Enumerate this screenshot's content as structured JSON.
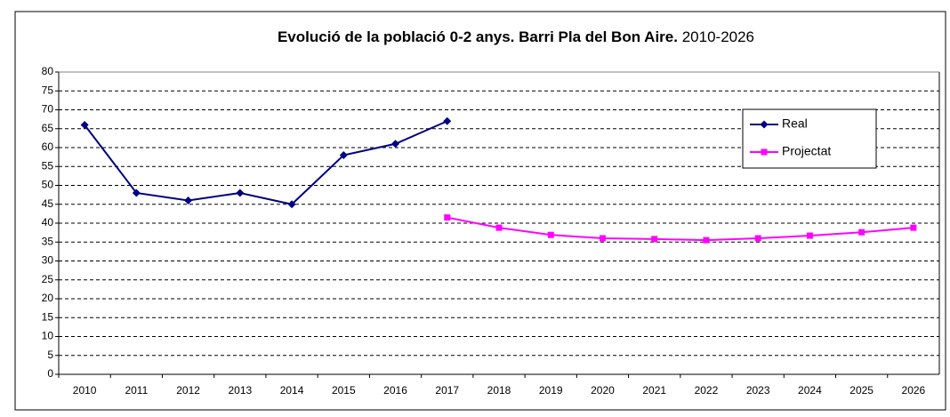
{
  "chart_data": {
    "type": "line",
    "title": "Evolució de la població 0-2 anys. Barri Pla del Bon Aire.",
    "subtitle": "2010-2026",
    "categories": [
      "2010",
      "2011",
      "2012",
      "2013",
      "2014",
      "2015",
      "2016",
      "2017",
      "2018",
      "2019",
      "2020",
      "2021",
      "2022",
      "2023",
      "2024",
      "2025",
      "2026"
    ],
    "series": [
      {
        "name": "Real",
        "color": "#000080",
        "marker": "diamond",
        "values": [
          66,
          48,
          46,
          48,
          45,
          58,
          61,
          67,
          null,
          null,
          null,
          null,
          null,
          null,
          null,
          null,
          null
        ]
      },
      {
        "name": "Projectat",
        "color": "#ff00ff",
        "marker": "square",
        "values": [
          null,
          null,
          null,
          null,
          null,
          null,
          null,
          41.5,
          38.8,
          36.9,
          36,
          35.8,
          35.5,
          36,
          36.7,
          37.6,
          38.8
        ]
      }
    ],
    "ylim": [
      0,
      80
    ],
    "yticks": [
      0,
      5,
      10,
      15,
      20,
      25,
      30,
      35,
      40,
      45,
      50,
      55,
      60,
      65,
      70,
      75,
      80
    ],
    "grid": true,
    "legend": "upper right"
  }
}
